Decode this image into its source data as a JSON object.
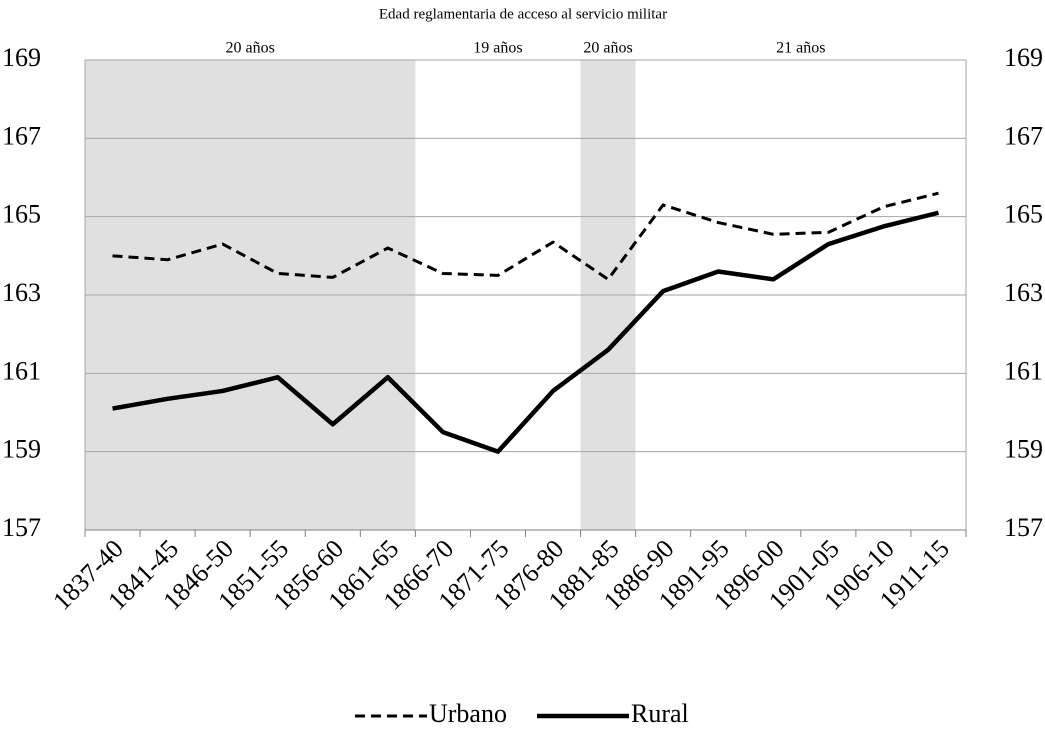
{
  "chart_data": {
    "type": "line",
    "title": "Edad reglamentaria de acceso al servicio militar",
    "categories": [
      "1837-40",
      "1841-45",
      "1846-50",
      "1851-55",
      "1856-60",
      "1861-65",
      "1866-70",
      "1871-75",
      "1876-80",
      "1881-85",
      "1886-90",
      "1891-95",
      "1896-00",
      "1901-05",
      "1906-10",
      "1911-15"
    ],
    "series": [
      {
        "name": "Urbano",
        "color": "#000000",
        "dash": true,
        "values": [
          164.0,
          163.9,
          164.3,
          163.55,
          163.45,
          164.2,
          163.55,
          163.5,
          164.35,
          163.4,
          165.3,
          164.85,
          164.55,
          164.6,
          165.25,
          165.6
        ]
      },
      {
        "name": "Rural",
        "color": "#000000",
        "dash": false,
        "values": [
          160.1,
          160.35,
          160.55,
          160.9,
          159.7,
          160.9,
          159.5,
          159.0,
          160.55,
          161.6,
          163.1,
          163.6,
          163.4,
          164.3,
          164.75,
          165.1
        ]
      }
    ],
    "periods": [
      {
        "label": "20 años",
        "from": "1837-40",
        "to": "1861-65",
        "shaded": true
      },
      {
        "label": "19 años",
        "from": "1866-70",
        "to": "1876-80",
        "shaded": false
      },
      {
        "label": "20 años",
        "from": "1881-85",
        "to": "1881-85",
        "shaded": true
      },
      {
        "label": "21 años",
        "from": "1886-90",
        "to": "1911-15",
        "shaded": false
      }
    ],
    "ylim": [
      157,
      169
    ],
    "yticks": [
      157,
      159,
      161,
      163,
      165,
      167,
      169
    ],
    "mirror_y_labels": true,
    "grid": true,
    "legend": "bottom"
  }
}
